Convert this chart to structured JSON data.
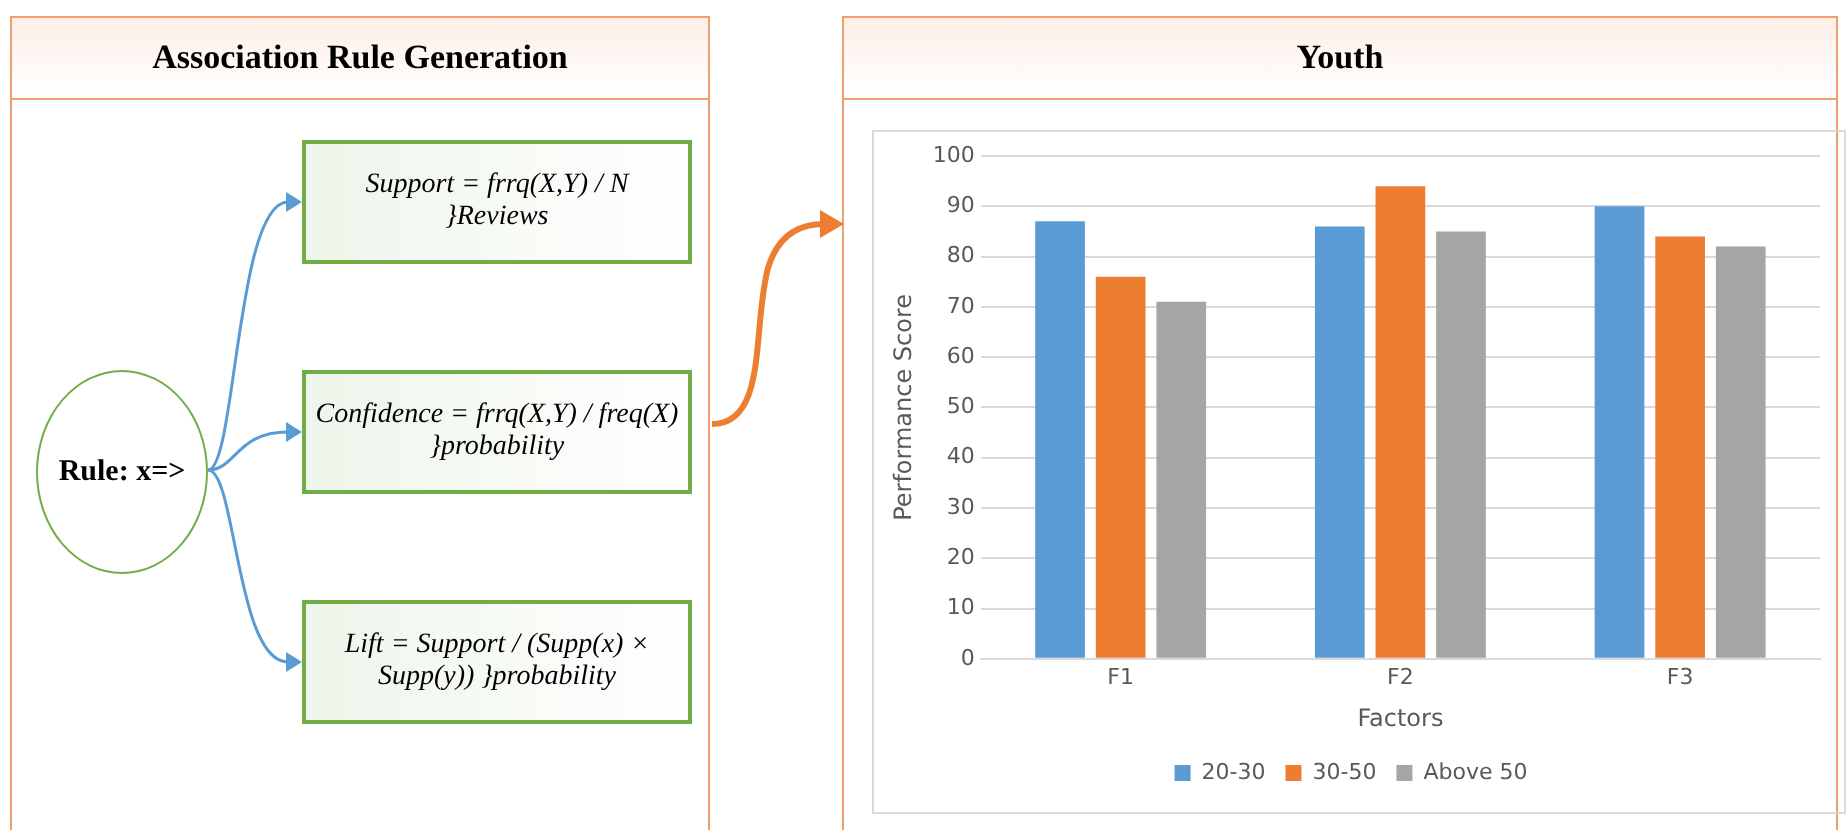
{
  "chart_data": [
    {
      "type": "other",
      "title": "Association Rule Generation",
      "annotations": [
        "Rule: x=>",
        "Support = frrq(X,Y) / N }Reviews",
        "Confidence = frrq(X,Y) / freq(X) }probability",
        "Lift = Support / (Supp(x) × Supp(y)) }probability"
      ]
    },
    {
      "type": "bar",
      "title": "Youth",
      "xlabel": "Factors",
      "ylabel": "Performance Score",
      "categories": [
        "F1",
        "F2",
        "F3"
      ],
      "series": [
        {
          "name": "20-30",
          "color": "#5b9bd5",
          "values": [
            87,
            86,
            90
          ]
        },
        {
          "name": "30-50",
          "color": "#ed7d31",
          "values": [
            76,
            94,
            84
          ]
        },
        {
          "name": "Above 50",
          "color": "#a5a5a5",
          "values": [
            71,
            85,
            82
          ]
        }
      ],
      "ylim": [
        0,
        100
      ],
      "yticks": [
        0,
        10,
        20,
        30,
        40,
        50,
        60,
        70,
        80,
        90,
        100
      ],
      "grid": "y",
      "legend": "bottom"
    }
  ]
}
